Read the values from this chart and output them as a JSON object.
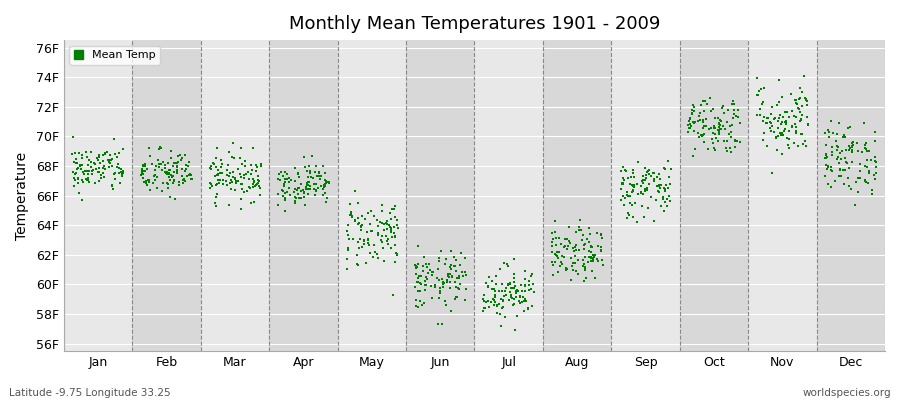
{
  "title": "Monthly Mean Temperatures 1901 - 2009",
  "ylabel": "Temperature",
  "xlabel_labels": [
    "Jan",
    "Feb",
    "Mar",
    "Apr",
    "May",
    "Jun",
    "Jul",
    "Aug",
    "Sep",
    "Oct",
    "Nov",
    "Dec"
  ],
  "ytick_labels": [
    "56F",
    "58F",
    "60F",
    "62F",
    "64F",
    "66F",
    "68F",
    "70F",
    "72F",
    "74F",
    "76F"
  ],
  "ytick_values": [
    56,
    58,
    60,
    62,
    64,
    66,
    68,
    70,
    72,
    74,
    76
  ],
  "ylim": [
    55.5,
    76.5
  ],
  "dot_color": "#008000",
  "dot_size": 3,
  "bg_color": "#ffffff",
  "plot_bg_color": "#e8e8e8",
  "stripe_color": "#d8d8d8",
  "footer_left": "Latitude -9.75 Longitude 33.25",
  "footer_right": "worldspecies.org",
  "legend_label": "Mean Temp",
  "n_years": 109,
  "monthly_means": [
    67.8,
    67.5,
    67.3,
    66.8,
    63.5,
    60.2,
    59.5,
    62.0,
    66.5,
    70.8,
    71.2,
    68.5
  ],
  "monthly_stds": [
    0.8,
    0.8,
    0.8,
    0.7,
    1.2,
    1.0,
    0.9,
    0.9,
    1.0,
    1.0,
    1.3,
    1.2
  ]
}
